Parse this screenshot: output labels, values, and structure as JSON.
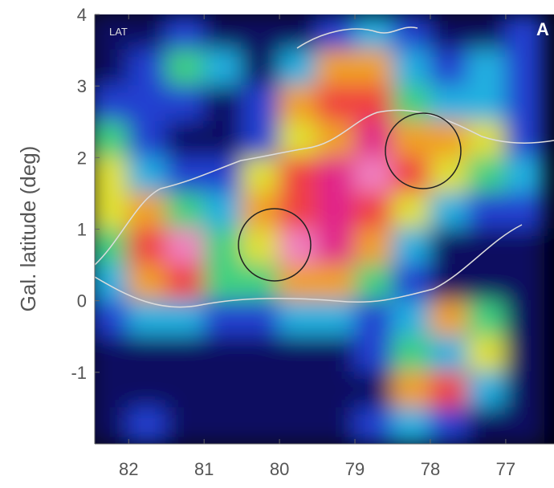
{
  "chart_data": {
    "type": "heatmap",
    "y_label": "Gal. latitude (deg)",
    "annotations": [
      "LAT",
      "A"
    ],
    "xlim": [
      82.45,
      76.36
    ],
    "ylim": [
      -2,
      4
    ],
    "xticks": [
      82,
      81,
      80,
      79,
      78,
      77
    ],
    "yticks": [
      -1,
      0,
      1,
      2,
      3,
      4
    ],
    "x": [
      82.25,
      81.75,
      81.25,
      80.75,
      80.25,
      79.75,
      79.25,
      78.75,
      78.25,
      77.75,
      77.25,
      76.75
    ],
    "y": [
      3.75,
      3.25,
      2.75,
      2.25,
      1.75,
      1.25,
      0.75,
      0.25,
      -0.25,
      -0.75,
      -1.25,
      -1.75
    ],
    "z": [
      [
        1,
        1,
        2,
        1,
        1,
        1,
        2,
        3,
        2,
        1,
        1,
        2
      ],
      [
        1,
        2,
        4,
        3,
        1,
        3,
        6,
        6,
        3,
        2,
        3,
        2
      ],
      [
        2,
        2,
        2,
        1,
        2,
        6,
        7,
        7,
        4,
        3,
        3,
        2
      ],
      [
        4,
        2,
        1,
        1,
        2,
        5,
        6,
        8,
        6,
        6,
        5,
        2
      ],
      [
        5,
        3,
        2,
        2,
        5,
        7,
        8,
        9,
        7,
        5,
        4,
        3
      ],
      [
        5,
        6,
        4,
        3,
        6,
        7,
        8,
        7,
        5,
        3,
        2,
        2
      ],
      [
        4,
        7,
        9,
        4,
        5,
        9,
        8,
        6,
        3,
        1,
        1,
        1
      ],
      [
        3,
        6,
        7,
        4,
        4,
        6,
        6,
        4,
        2,
        1,
        1,
        1
      ],
      [
        2,
        3,
        3,
        2,
        2,
        3,
        3,
        2,
        3,
        6,
        4,
        1
      ],
      [
        1,
        1,
        1,
        1,
        1,
        1,
        1,
        2,
        4,
        3,
        5,
        1
      ],
      [
        1,
        1,
        1,
        1,
        1,
        1,
        1,
        1,
        6,
        7,
        3,
        1
      ],
      [
        1,
        2,
        1,
        1,
        1,
        1,
        1,
        2,
        3,
        2,
        1,
        1
      ]
    ],
    "colormap": [
      "#000010",
      "#101060",
      "#2040d0",
      "#20b0e0",
      "#40d080",
      "#e0e030",
      "#f0a020",
      "#f04040",
      "#e0208a",
      "#f080c0"
    ]
  }
}
